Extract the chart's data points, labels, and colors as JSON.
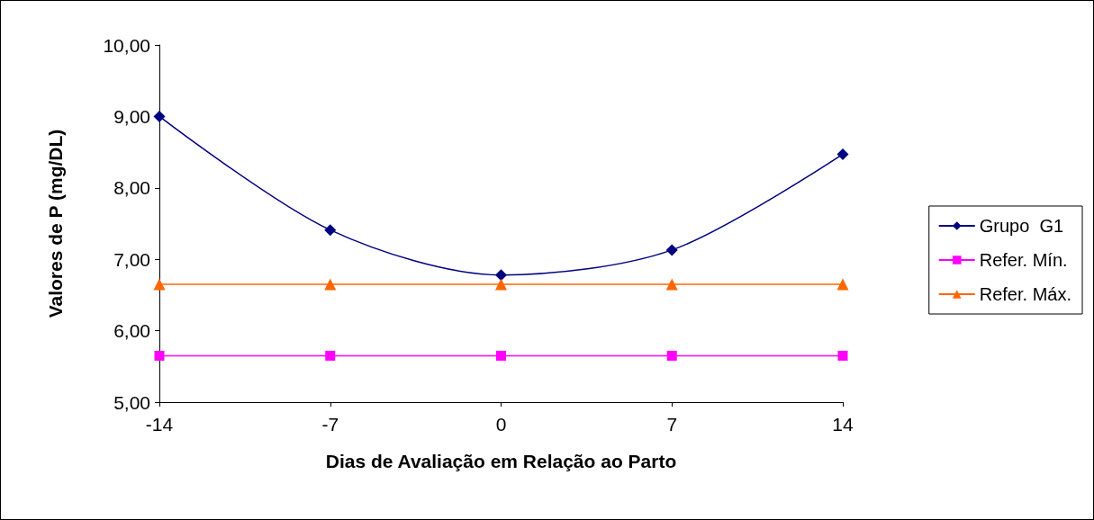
{
  "chart_data": {
    "type": "line",
    "xlabel": "Dias de Avaliação em Relação ao Parto",
    "ylabel": "Valores de P (mg/DL)",
    "x": [
      -14,
      -7,
      0,
      7,
      14
    ],
    "xlim": [
      -14,
      14
    ],
    "xticks": [
      -14,
      -7,
      0,
      7,
      14
    ],
    "ylim": [
      5,
      10
    ],
    "yticks": [
      {
        "value": 5,
        "label": "5,00"
      },
      {
        "value": 6,
        "label": "6,00"
      },
      {
        "value": 7,
        "label": "7,00"
      },
      {
        "value": 8,
        "label": "8,00"
      },
      {
        "value": 9,
        "label": "9,00"
      },
      {
        "value": 10,
        "label": "10,00"
      }
    ],
    "grid": false,
    "legend": "right",
    "series": [
      {
        "name": "Grupo  G1",
        "color": "#000080",
        "marker": "diamond",
        "values": [
          9.0,
          7.41,
          6.78,
          7.13,
          8.47
        ]
      },
      {
        "name": "Refer. Mín.",
        "color": "#ff00ff",
        "marker": "square",
        "values": [
          5.65,
          5.65,
          5.65,
          5.65,
          5.65
        ]
      },
      {
        "name": "Refer. Máx.",
        "color": "#ff6600",
        "marker": "triangle",
        "values": [
          6.65,
          6.65,
          6.65,
          6.65,
          6.65
        ]
      }
    ]
  }
}
